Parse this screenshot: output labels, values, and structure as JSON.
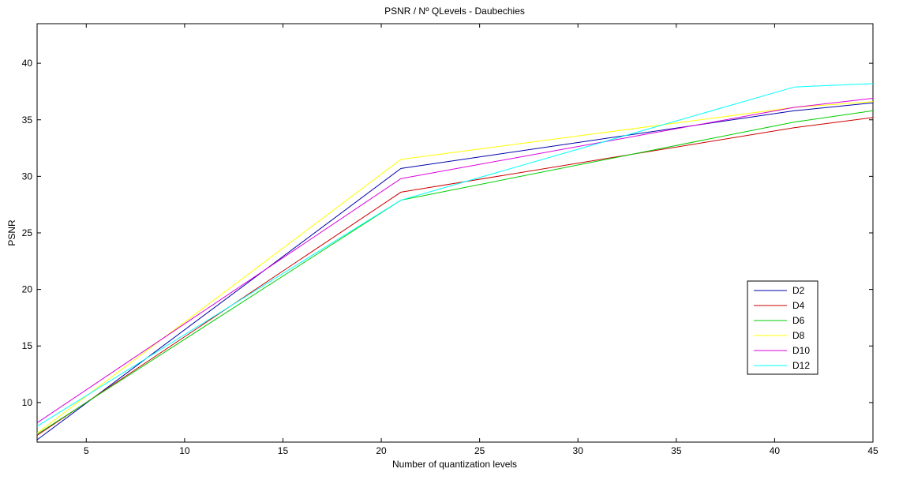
{
  "chart_data": {
    "type": "line",
    "title": "PSNR / Nº QLevels - Daubechies",
    "xlabel": "Number of quantization levels",
    "ylabel": "PSNR",
    "xlim": [
      2.5,
      45
    ],
    "ylim": [
      6.5,
      43.5
    ],
    "xticks": [
      5,
      10,
      15,
      20,
      25,
      30,
      35,
      40,
      45
    ],
    "yticks": [
      10,
      15,
      20,
      25,
      30,
      35,
      40
    ],
    "grid": false,
    "legend_position": "lower-right",
    "x": [
      2.5,
      21,
      41,
      45
    ],
    "series": [
      {
        "name": "D2",
        "color": "#0000aa",
        "values": [
          6.7,
          30.7,
          35.8,
          36.5
        ]
      },
      {
        "name": "D4",
        "color": "#cc0000",
        "values": [
          7.1,
          28.6,
          34.3,
          35.2
        ]
      },
      {
        "name": "D6",
        "color": "#00cc00",
        "values": [
          7.2,
          27.9,
          34.8,
          35.8
        ]
      },
      {
        "name": "D8",
        "color": "#ffff00",
        "values": [
          7.3,
          31.5,
          36.1,
          36.6
        ]
      },
      {
        "name": "D10",
        "color": "#dd00dd",
        "values": [
          8.2,
          29.8,
          36.1,
          36.9
        ]
      },
      {
        "name": "D12",
        "color": "#00ffff",
        "values": [
          7.9,
          27.9,
          37.9,
          38.2
        ]
      }
    ]
  }
}
